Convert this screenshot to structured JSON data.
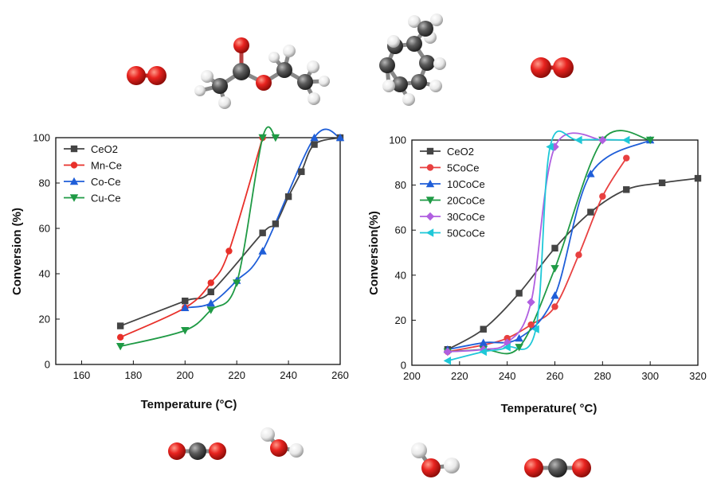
{
  "chart_data": [
    {
      "type": "line",
      "title": "",
      "xlabel": "Temperature (°C)",
      "ylabel": "Conversion (%)",
      "xlim": [
        150,
        260
      ],
      "ylim": [
        0,
        100
      ],
      "xticks": [
        160,
        180,
        200,
        220,
        240,
        260
      ],
      "yticks": [
        0,
        20,
        40,
        60,
        80,
        100
      ],
      "grid": false,
      "legend_position": "top-left",
      "series": [
        {
          "name": "CeO2",
          "color": "#444444",
          "marker": "square",
          "x": [
            175,
            200,
            210,
            230,
            235,
            240,
            245,
            250,
            260
          ],
          "y": [
            17,
            28,
            32,
            58,
            62,
            74,
            85,
            97,
            100
          ]
        },
        {
          "name": "Mn-Ce",
          "color": "#e8302a",
          "marker": "circle",
          "x": [
            175,
            200,
            210,
            217,
            230
          ],
          "y": [
            12,
            25,
            36,
            50,
            100
          ]
        },
        {
          "name": "Co-Ce",
          "color": "#1f5ed8",
          "marker": "triangle-up",
          "x": [
            200,
            210,
            220,
            230,
            250,
            260
          ],
          "y": [
            25,
            27,
            37,
            50,
            100,
            100
          ]
        },
        {
          "name": "Cu-Ce",
          "color": "#1f9a45",
          "marker": "triangle-down",
          "x": [
            175,
            200,
            210,
            220,
            230,
            235
          ],
          "y": [
            8,
            15,
            24,
            36,
            100,
            100
          ]
        }
      ]
    },
    {
      "type": "line",
      "title": "",
      "xlabel": "Temperature( °C)",
      "ylabel": "Conversion(%)",
      "xlim": [
        200,
        320
      ],
      "ylim": [
        0,
        100
      ],
      "xticks": [
        200,
        220,
        240,
        260,
        280,
        300,
        320
      ],
      "yticks": [
        0,
        20,
        40,
        60,
        80,
        100
      ],
      "grid": false,
      "legend_position": "top-left",
      "series": [
        {
          "name": "CeO2",
          "color": "#444444",
          "marker": "square",
          "x": [
            215,
            230,
            245,
            260,
            275,
            290,
            305,
            320
          ],
          "y": [
            7,
            16,
            32,
            52,
            68,
            78,
            81,
            83
          ]
        },
        {
          "name": "5CoCe",
          "color": "#e84040",
          "marker": "circle",
          "x": [
            215,
            230,
            240,
            250,
            260,
            270,
            280,
            290
          ],
          "y": [
            6,
            9,
            12,
            18,
            26,
            49,
            75,
            92
          ]
        },
        {
          "name": "10CoCe",
          "color": "#1f5ed8",
          "marker": "triangle-up",
          "x": [
            215,
            230,
            245,
            260,
            275,
            300
          ],
          "y": [
            7,
            10,
            12,
            31,
            85,
            100
          ]
        },
        {
          "name": "20CoCe",
          "color": "#1f9a45",
          "marker": "triangle-down",
          "x": [
            215,
            230,
            245,
            260,
            280,
            300
          ],
          "y": [
            6,
            7,
            8,
            43,
            100,
            100
          ]
        },
        {
          "name": "30CoCe",
          "color": "#b05fe0",
          "marker": "diamond",
          "x": [
            215,
            230,
            240,
            250,
            260,
            280
          ],
          "y": [
            6,
            7,
            10,
            28,
            97,
            100
          ]
        },
        {
          "name": "50CoCe",
          "color": "#1ec8d8",
          "marker": "triangle-left",
          "x": [
            215,
            230,
            240,
            252,
            258,
            270,
            290
          ],
          "y": [
            2,
            6,
            8,
            16,
            97,
            100,
            100
          ]
        }
      ]
    }
  ],
  "molecules": [
    {
      "name": "o2-left",
      "formula": "O2"
    },
    {
      "name": "ethyl-acetate",
      "formula": "C4H8O2"
    },
    {
      "name": "toluene",
      "formula": "C7H8"
    },
    {
      "name": "o2-right",
      "formula": "O2"
    },
    {
      "name": "co2-left",
      "formula": "CO2"
    },
    {
      "name": "h2o-left",
      "formula": "H2O"
    },
    {
      "name": "h2o-right",
      "formula": "H2O"
    },
    {
      "name": "co2-right",
      "formula": "CO2"
    }
  ],
  "colors": {
    "oxygen": "#e8231f",
    "carbon": "#5b5b5b",
    "hydrogen": "#f2f2f2"
  }
}
